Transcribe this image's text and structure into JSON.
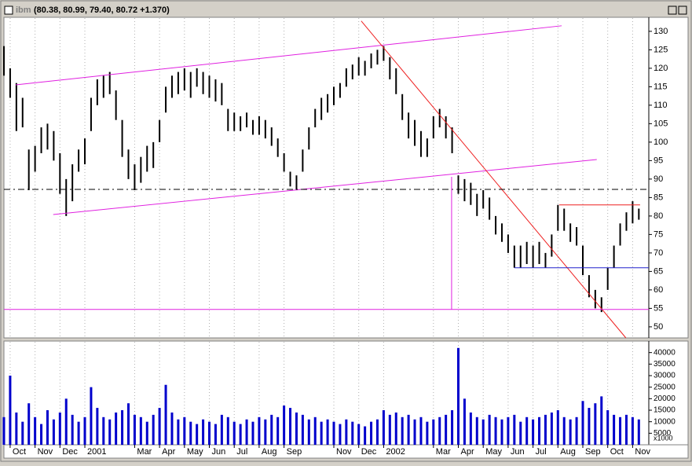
{
  "chart_data": [
    {
      "type": "hilo",
      "title": "ibm",
      "subtitle": "(80.38, 80.99, 79.40, 80.72 +1.370)",
      "color": "#000000",
      "x": [
        -0.25,
        0,
        0.25,
        0.5,
        0.75,
        1,
        1.25,
        1.5,
        1.75,
        2,
        2.25,
        2.5,
        2.75,
        3,
        3.25,
        3.5,
        3.75,
        4,
        4.25,
        4.5,
        4.75,
        5,
        5.25,
        5.5,
        5.75,
        6,
        6.25,
        6.5,
        6.75,
        7,
        7.25,
        7.5,
        7.75,
        8,
        8.25,
        8.5,
        8.75,
        9,
        9.25,
        9.5,
        9.75,
        10,
        10.25,
        10.5,
        10.75,
        11,
        11.25,
        11.5,
        11.75,
        12,
        12.25,
        12.5,
        12.75,
        13,
        13.25,
        13.5,
        13.75,
        14,
        14.25,
        14.5,
        14.75,
        15,
        15.25,
        15.5,
        15.75,
        16,
        16.25,
        16.5,
        16.75,
        17,
        17.25,
        17.5,
        17.75,
        18,
        18.25,
        18.5,
        18.75,
        19,
        19.25,
        19.5,
        19.75,
        20,
        20.25,
        20.5,
        20.75,
        21,
        21.25,
        21.5,
        21.75,
        22,
        22.25,
        22.5,
        22.75,
        23,
        23.25,
        23.5,
        23.75,
        24,
        24.25,
        24.5,
        24.75,
        25,
        25.25
      ],
      "high": [
        126,
        120,
        116,
        112,
        98,
        99,
        104,
        105,
        103,
        97,
        90,
        94,
        98,
        101,
        112,
        117,
        118,
        119,
        114,
        106,
        98,
        94,
        96,
        99,
        100,
        106,
        115,
        118,
        119,
        120,
        119,
        120,
        119,
        118,
        117,
        116,
        109,
        108,
        107,
        108,
        106,
        107,
        106,
        104,
        101,
        97,
        92,
        91,
        98,
        104,
        109,
        112,
        113,
        115,
        116,
        120,
        121,
        123,
        122,
        124,
        125,
        126,
        123,
        120,
        113,
        108,
        106,
        103,
        101,
        107,
        109,
        107,
        104,
        91,
        90,
        89,
        86,
        87,
        85,
        80,
        78,
        75,
        72,
        72,
        73,
        72,
        73,
        70,
        75,
        83,
        82,
        78,
        77,
        72,
        64,
        60,
        58,
        66,
        72,
        78,
        81,
        84,
        82
      ],
      "low": [
        118,
        112,
        103,
        104,
        87,
        92,
        97,
        98,
        95,
        86,
        80,
        84,
        92,
        94,
        103,
        110,
        112,
        113,
        106,
        96,
        90,
        87,
        89,
        92,
        93,
        100,
        108,
        112,
        113,
        114,
        112,
        115,
        113,
        112,
        111,
        110,
        103,
        103,
        103,
        104,
        102,
        102,
        101,
        99,
        96,
        92,
        88,
        87,
        92,
        98,
        104,
        106,
        108,
        110,
        112,
        115,
        117,
        118,
        118,
        120,
        121,
        122,
        117,
        113,
        106,
        101,
        99,
        96,
        96,
        101,
        104,
        101,
        97,
        86,
        84,
        83,
        80,
        82,
        79,
        75,
        73,
        70,
        66,
        66,
        67,
        66,
        67,
        66,
        69,
        76,
        76,
        73,
        72,
        64,
        58,
        55,
        54,
        60,
        66,
        72,
        76,
        78,
        79
      ],
      "xlim": [
        -0.25,
        25.65
      ],
      "xticks": [
        {
          "value": 0,
          "label": "Oct"
        },
        {
          "value": 1,
          "label": "Nov"
        },
        {
          "value": 2,
          "label": "Dec"
        },
        {
          "value": 3,
          "label": "2001"
        },
        {
          "value": 5,
          "label": "Mar"
        },
        {
          "value": 6,
          "label": "Apr"
        },
        {
          "value": 7,
          "label": "May"
        },
        {
          "value": 8,
          "label": "Jun"
        },
        {
          "value": 9,
          "label": "Jul"
        },
        {
          "value": 10,
          "label": "Aug"
        },
        {
          "value": 11,
          "label": "Sep"
        },
        {
          "value": 13,
          "label": "Nov"
        },
        {
          "value": 14,
          "label": "Dec"
        },
        {
          "value": 15,
          "label": "2002"
        },
        {
          "value": 17,
          "label": "Mar"
        },
        {
          "value": 18,
          "label": "Apr"
        },
        {
          "value": 19,
          "label": "May"
        },
        {
          "value": 20,
          "label": "Jun"
        },
        {
          "value": 21,
          "label": "Jul"
        },
        {
          "value": 22,
          "label": "Aug"
        },
        {
          "value": 23,
          "label": "Sep"
        },
        {
          "value": 24,
          "label": "Oct"
        },
        {
          "value": 25,
          "label": "Nov"
        }
      ],
      "ylim": [
        47,
        133.8
      ],
      "yticks": [
        50,
        55,
        60,
        65,
        70,
        75,
        80,
        85,
        90,
        95,
        100,
        105,
        110,
        115,
        120,
        125,
        130
      ],
      "grid": true,
      "lines": [
        {
          "x": [
            0.22,
            22.15
          ],
          "y": [
            115.5,
            131.5
          ],
          "color": "#e020e0"
        },
        {
          "x": [
            1.73,
            23.56
          ],
          "y": [
            80.4,
            95.3
          ],
          "color": "#e020e0"
        },
        {
          "x": [
            14.1,
            24.73
          ],
          "y": [
            132.8,
            47.0
          ],
          "color": "#ee2020"
        },
        {
          "x": [
            -0.25,
            25.65
          ],
          "y": [
            87.2,
            87.2
          ],
          "color": "#000000",
          "dash": true
        },
        {
          "x": [
            -0.25,
            25.65
          ],
          "y": [
            54.7,
            54.7
          ],
          "color": "#e020e0"
        },
        {
          "x": [
            17.73,
            17.73
          ],
          "y": [
            90.6,
            54.7
          ],
          "color": "#e020e0"
        },
        {
          "x": [
            20.25,
            25.65
          ],
          "y": [
            66.0,
            66.0
          ],
          "color": "#2020cc"
        },
        {
          "x": [
            22.05,
            25.3
          ],
          "y": [
            83.0,
            83.0
          ],
          "color": "#ee2020"
        }
      ]
    },
    {
      "type": "bar",
      "color": "#0000cc",
      "values": [
        12000,
        30000,
        14000,
        10000,
        18000,
        12000,
        9000,
        15000,
        11000,
        14000,
        20000,
        13000,
        10000,
        12000,
        25000,
        16000,
        12000,
        11000,
        14000,
        15000,
        18000,
        13000,
        12000,
        10000,
        13000,
        16000,
        26000,
        14000,
        11000,
        12000,
        10000,
        9000,
        11000,
        10000,
        9000,
        13000,
        12000,
        10000,
        9000,
        11000,
        10000,
        12000,
        11000,
        13000,
        12000,
        17000,
        16000,
        14000,
        13000,
        11000,
        12000,
        10000,
        11000,
        10000,
        9000,
        11000,
        10000,
        9000,
        8000,
        10000,
        11000,
        15000,
        13000,
        14000,
        12000,
        13000,
        11000,
        12000,
        10000,
        11000,
        12000,
        13000,
        15000,
        42000,
        20000,
        14000,
        12000,
        11000,
        13000,
        12000,
        11000,
        12000,
        13000,
        10000,
        12000,
        11000,
        12000,
        13000,
        14000,
        15000,
        12000,
        11000,
        12000,
        19000,
        16000,
        18000,
        21000,
        15000,
        13000,
        12000,
        13000,
        12000,
        11000
      ],
      "ylim": [
        0,
        45000
      ],
      "yticks": [
        5000,
        10000,
        15000,
        20000,
        25000,
        30000,
        35000,
        40000
      ],
      "unit_label": "x1000"
    }
  ]
}
